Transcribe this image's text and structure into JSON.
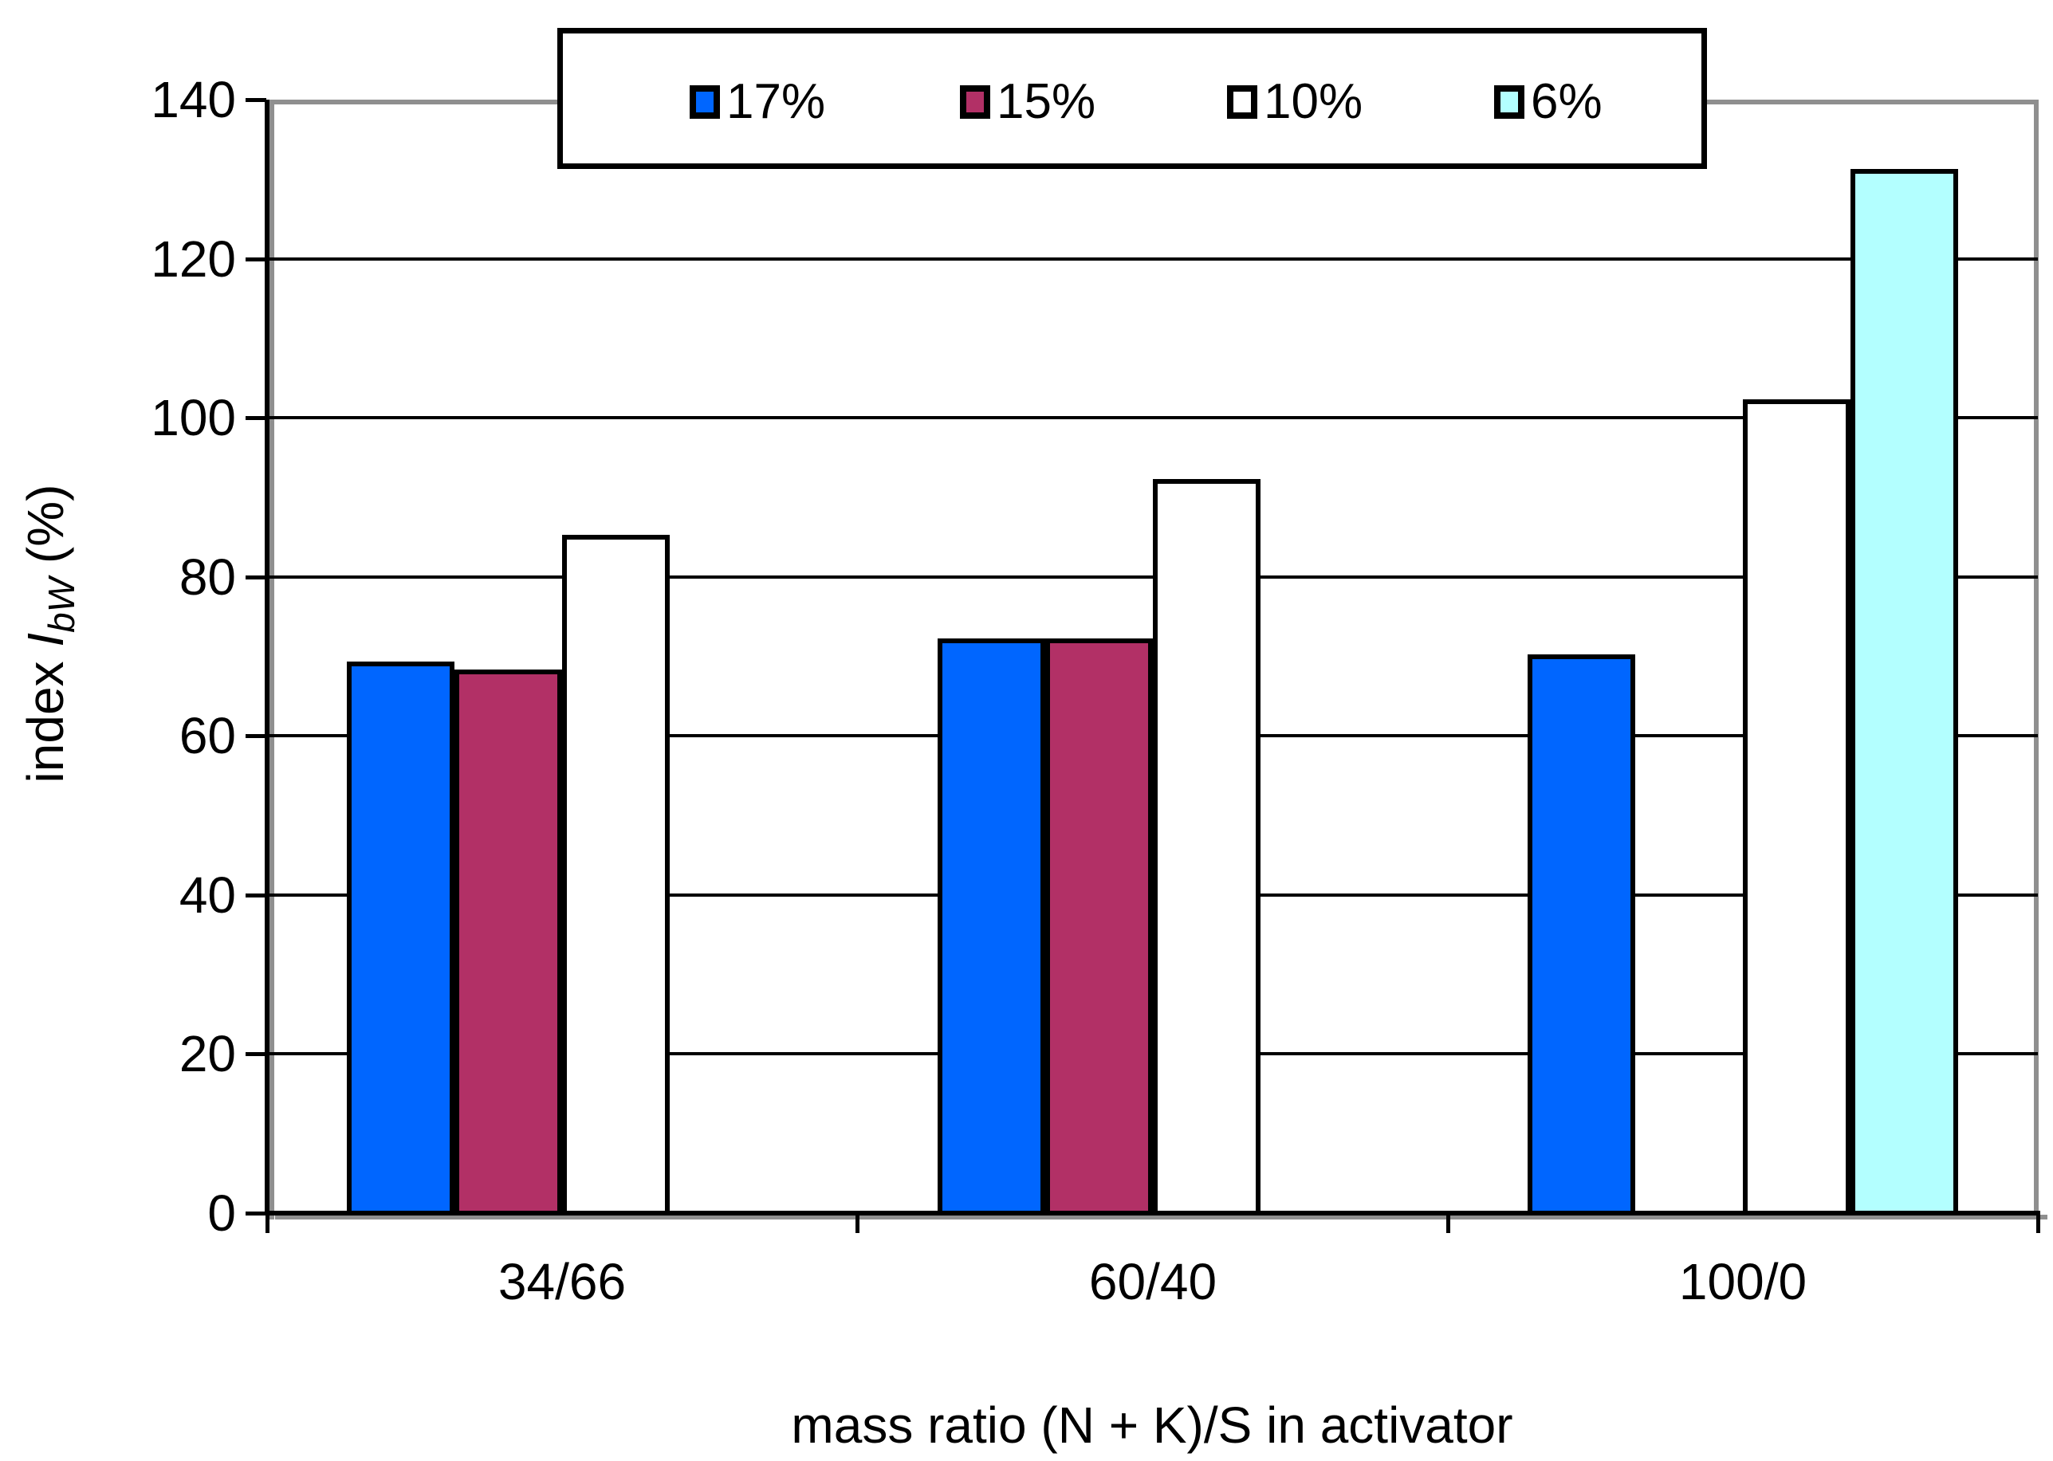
{
  "chart_data": {
    "type": "bar",
    "title": "",
    "categories": [
      "34/66",
      "60/40",
      "100/0"
    ],
    "series": [
      {
        "name": "17%",
        "color": "#0066FF",
        "values": [
          69,
          72,
          70
        ]
      },
      {
        "name": "15%",
        "color": "#B23066",
        "values": [
          68,
          72,
          null
        ]
      },
      {
        "name": "10%",
        "color": "#FFFFFF",
        "values": [
          85,
          92,
          102
        ]
      },
      {
        "name": "6%",
        "color": "#B3FFFF",
        "values": [
          null,
          null,
          131
        ]
      }
    ],
    "xlabel": "mass ratio (N + K)/S in activator",
    "ylabel": "index IbW (%)",
    "ylabel_parts": {
      "prefix": "index ",
      "symbol": "I",
      "subscript": "bW",
      "suffix": " (%)"
    },
    "ylim": [
      0,
      140
    ],
    "ytick_step": 20,
    "yticks": [
      "0",
      "20",
      "40",
      "60",
      "80",
      "100",
      "120",
      "140"
    ],
    "grid": true,
    "legend_position": "top-center",
    "legend_entries": [
      "17%",
      "15%",
      "10%",
      "6%"
    ],
    "colors": {
      "axis": "#000000",
      "gridline": "#000000",
      "frame_shadow": "#8F8F8F",
      "bar_border": "#000000",
      "background": "#FFFFFF"
    }
  }
}
